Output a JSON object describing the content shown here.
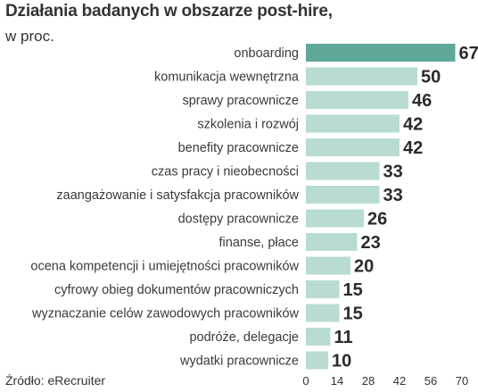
{
  "header": {
    "title": "Działania badanych w obszarze post-hire,",
    "subtitle": "w proc."
  },
  "footer": {
    "source": "Źródło: eRecruiter"
  },
  "colors": {
    "highlight": "#5fa798",
    "bar": "#b8dcd3"
  },
  "chart_data": {
    "type": "bar",
    "orientation": "horizontal",
    "title": "Działania badanych w obszarze post-hire,",
    "subtitle": "w proc.",
    "categories": [
      "onboarding",
      "komunikacja wewnętrzna",
      "sprawy pracownicze",
      "szkolenia i rozwój",
      "benefity pracownicze",
      "czas pracy i nieobecności",
      "zaangażowanie i satysfakcja pracowników",
      "dostępy pracownicze",
      "finanse, płace",
      "ocena kompetencji i umiejętności pracowników",
      "cyfrowy obieg dokumentów pracowniczych",
      "wyznaczanie celów zawodowych pracowników",
      "podróże, delegacje",
      "wydatki pracownicze"
    ],
    "values": [
      67,
      50,
      46,
      42,
      42,
      33,
      33,
      26,
      23,
      20,
      15,
      15,
      11,
      10
    ],
    "highlight_index": 0,
    "xlim": [
      0,
      70
    ],
    "xticks": [
      0,
      14,
      28,
      42,
      56,
      70
    ],
    "grid": false,
    "legend": "none"
  }
}
